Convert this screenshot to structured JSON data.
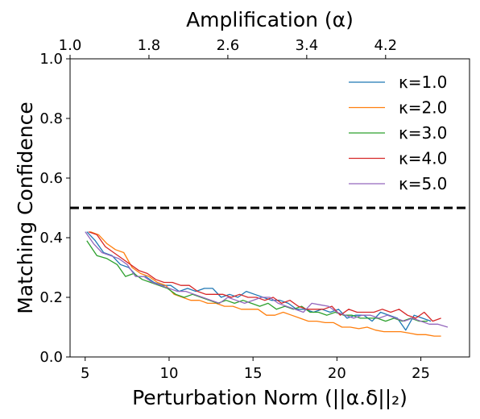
{
  "chart_data": {
    "type": "line",
    "title": "",
    "xlabel": "Perturbation Norm (||α.δ||₂)",
    "ylabel": "Matching Confidence",
    "top_xlabel": "Amplification (α)",
    "xlim": [
      4.1,
      27.9
    ],
    "ylim": [
      0.0,
      1.0
    ],
    "xticks": [
      5,
      10,
      15,
      20,
      25
    ],
    "yticks": [
      0.0,
      0.2,
      0.4,
      0.6,
      0.8,
      1.0
    ],
    "top_xticks": [
      {
        "label": "1.0",
        "x": 4.1
      },
      {
        "label": "1.8",
        "x": 8.8
      },
      {
        "label": "2.6",
        "x": 13.5
      },
      {
        "label": "3.4",
        "x": 18.2
      },
      {
        "label": "4.2",
        "x": 22.9
      }
    ],
    "grid": false,
    "legend_position": "top-right",
    "threshold": {
      "y": 0.5,
      "style": "dashed",
      "color": "#000000"
    },
    "series": [
      {
        "name": "κ=1.0",
        "color": "#1f77b4",
        "x": [
          5.1,
          5.6,
          6.1,
          6.6,
          7.1,
          7.6,
          8.1,
          8.6,
          9.1,
          9.6,
          10.1,
          10.6,
          11.1,
          11.6,
          12.1,
          12.6,
          13.1,
          13.6,
          14.1,
          14.6,
          15.1,
          15.6,
          16.1,
          16.6,
          17.1,
          17.6,
          18.1,
          18.6,
          19.1,
          19.6,
          20.1,
          20.6,
          21.1,
          21.6,
          22.1,
          22.6,
          23.1,
          23.6,
          24.1,
          24.6,
          25.1,
          25.6
        ],
        "y": [
          0.42,
          0.39,
          0.35,
          0.34,
          0.31,
          0.3,
          0.27,
          0.27,
          0.25,
          0.24,
          0.24,
          0.22,
          0.23,
          0.22,
          0.23,
          0.23,
          0.2,
          0.21,
          0.2,
          0.22,
          0.21,
          0.2,
          0.19,
          0.19,
          0.18,
          0.16,
          0.16,
          0.15,
          0.16,
          0.15,
          0.16,
          0.13,
          0.14,
          0.14,
          0.12,
          0.15,
          0.14,
          0.13,
          0.09,
          0.14,
          0.13,
          0.12
        ]
      },
      {
        "name": "κ=2.0",
        "color": "#ff7f0e",
        "x": [
          5.3,
          5.8,
          6.3,
          6.8,
          7.3,
          7.8,
          8.3,
          8.8,
          9.3,
          9.8,
          10.3,
          10.8,
          11.3,
          11.8,
          12.3,
          12.8,
          13.3,
          13.8,
          14.3,
          14.8,
          15.3,
          15.8,
          16.3,
          16.8,
          17.3,
          17.8,
          18.3,
          18.8,
          19.3,
          19.8,
          20.3,
          20.8,
          21.3,
          21.8,
          22.3,
          22.8,
          23.3,
          23.8,
          24.3,
          24.8,
          25.3,
          25.8,
          26.2
        ],
        "y": [
          0.42,
          0.41,
          0.38,
          0.36,
          0.35,
          0.3,
          0.28,
          0.27,
          0.25,
          0.24,
          0.21,
          0.2,
          0.19,
          0.19,
          0.18,
          0.18,
          0.17,
          0.17,
          0.16,
          0.16,
          0.16,
          0.14,
          0.14,
          0.15,
          0.14,
          0.13,
          0.12,
          0.12,
          0.115,
          0.115,
          0.1,
          0.1,
          0.095,
          0.1,
          0.09,
          0.085,
          0.085,
          0.085,
          0.08,
          0.075,
          0.075,
          0.07,
          0.07
        ]
      },
      {
        "name": "κ=3.0",
        "color": "#2ca02c",
        "x": [
          5.1,
          5.7,
          6.3,
          6.9,
          7.4,
          7.9,
          8.4,
          8.9,
          9.4,
          9.9,
          10.4,
          10.9,
          11.4,
          11.9,
          12.4,
          12.9,
          13.4,
          13.9,
          14.4,
          14.9,
          15.4,
          15.9,
          16.4,
          16.9,
          17.4,
          17.9,
          18.4,
          18.9,
          19.4,
          19.9,
          20.4,
          20.9,
          21.4,
          21.9,
          22.4,
          22.9,
          23.4,
          23.9,
          24.4,
          24.9,
          25.4
        ],
        "y": [
          0.39,
          0.34,
          0.33,
          0.31,
          0.27,
          0.28,
          0.26,
          0.25,
          0.24,
          0.23,
          0.21,
          0.2,
          0.21,
          0.2,
          0.19,
          0.18,
          0.19,
          0.18,
          0.19,
          0.18,
          0.17,
          0.18,
          0.16,
          0.17,
          0.16,
          0.17,
          0.15,
          0.15,
          0.14,
          0.15,
          0.14,
          0.14,
          0.13,
          0.13,
          0.13,
          0.12,
          0.13,
          0.12,
          0.13,
          0.12,
          0.12
        ]
      },
      {
        "name": "κ=4.0",
        "color": "#d62728",
        "x": [
          5.2,
          5.7,
          6.2,
          6.7,
          7.2,
          7.7,
          8.2,
          8.7,
          9.2,
          9.7,
          10.2,
          10.7,
          11.2,
          11.7,
          12.2,
          12.7,
          13.2,
          13.7,
          14.2,
          14.7,
          15.2,
          15.7,
          16.2,
          16.7,
          17.2,
          17.7,
          18.2,
          18.7,
          19.2,
          19.7,
          20.2,
          20.7,
          21.2,
          21.7,
          22.2,
          22.7,
          23.2,
          23.7,
          24.2,
          24.7,
          25.2,
          25.7,
          26.2
        ],
        "y": [
          0.42,
          0.41,
          0.37,
          0.35,
          0.33,
          0.31,
          0.29,
          0.28,
          0.26,
          0.25,
          0.25,
          0.24,
          0.24,
          0.22,
          0.21,
          0.21,
          0.21,
          0.2,
          0.21,
          0.2,
          0.2,
          0.19,
          0.2,
          0.18,
          0.19,
          0.17,
          0.16,
          0.16,
          0.16,
          0.17,
          0.14,
          0.16,
          0.15,
          0.15,
          0.15,
          0.16,
          0.15,
          0.16,
          0.14,
          0.13,
          0.15,
          0.12,
          0.13
        ]
      },
      {
        "name": "κ=5.0",
        "color": "#9467bd",
        "x": [
          5.0,
          5.5,
          6.0,
          6.5,
          7.0,
          7.5,
          8.0,
          8.5,
          9.0,
          9.5,
          10.0,
          10.5,
          11.0,
          11.5,
          12.0,
          12.5,
          13.0,
          13.5,
          14.0,
          14.5,
          15.0,
          15.5,
          16.0,
          16.5,
          17.0,
          17.5,
          18.0,
          18.5,
          19.0,
          19.5,
          20.0,
          20.5,
          21.0,
          21.5,
          22.0,
          22.5,
          23.0,
          23.5,
          24.0,
          24.5,
          25.0,
          25.5,
          26.0,
          26.6
        ],
        "y": [
          0.42,
          0.38,
          0.35,
          0.34,
          0.33,
          0.31,
          0.27,
          0.27,
          0.25,
          0.24,
          0.23,
          0.22,
          0.22,
          0.21,
          0.2,
          0.19,
          0.18,
          0.2,
          0.19,
          0.18,
          0.19,
          0.2,
          0.2,
          0.18,
          0.17,
          0.16,
          0.15,
          0.18,
          0.175,
          0.17,
          0.15,
          0.14,
          0.13,
          0.14,
          0.14,
          0.13,
          0.14,
          0.13,
          0.12,
          0.13,
          0.12,
          0.11,
          0.11,
          0.1
        ]
      }
    ]
  }
}
